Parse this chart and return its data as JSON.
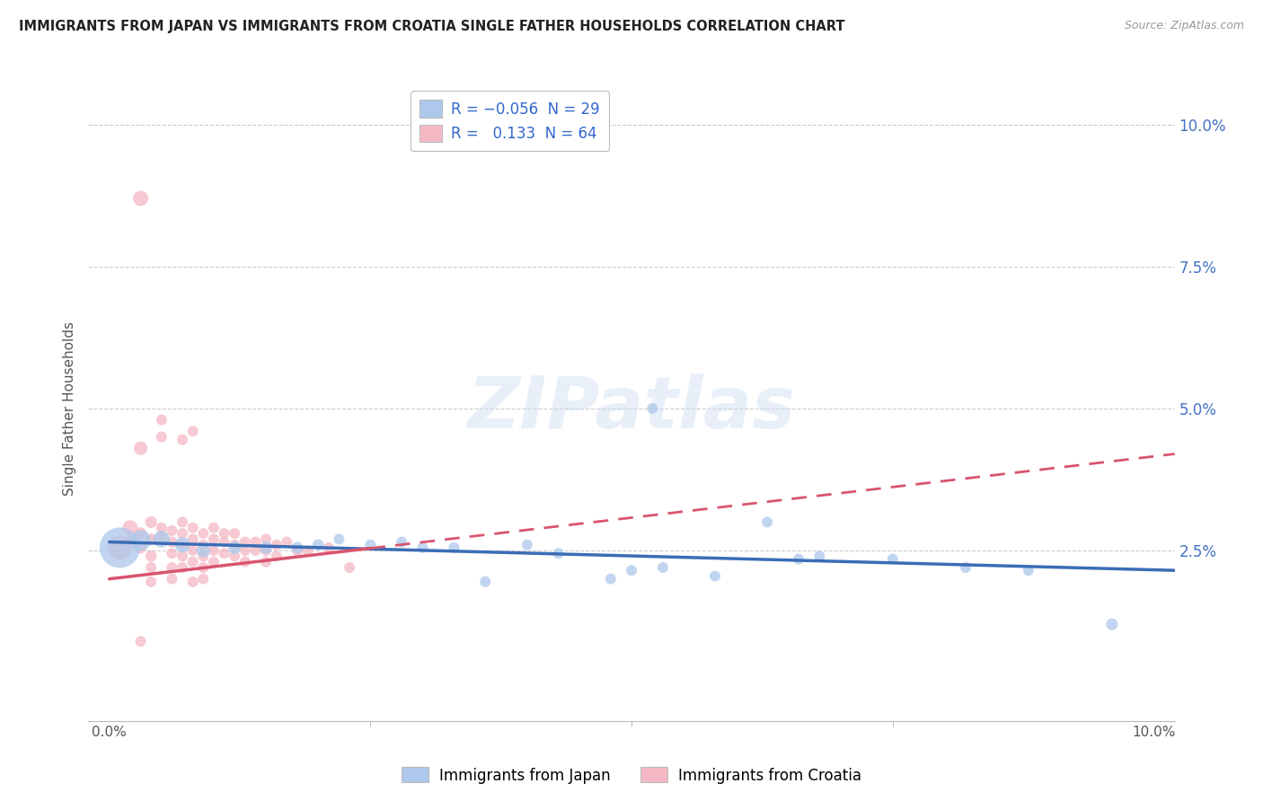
{
  "title": "IMMIGRANTS FROM JAPAN VS IMMIGRANTS FROM CROATIA SINGLE FATHER HOUSEHOLDS CORRELATION CHART",
  "source": "Source: ZipAtlas.com",
  "ylabel": "Single Father Households",
  "xlim": [
    -0.002,
    0.102
  ],
  "ylim": [
    -0.005,
    0.105
  ],
  "x_ticks": [
    0.0,
    0.1
  ],
  "x_tick_labels": [
    "0.0%",
    "10.0%"
  ],
  "y_ticks_right": [
    0.025,
    0.05,
    0.075,
    0.1
  ],
  "y_tick_labels_right": [
    "2.5%",
    "5.0%",
    "7.5%",
    "10.0%"
  ],
  "legend_entries": [
    {
      "label_r": "-0.056",
      "label_n": "29",
      "color": "#adc8eb"
    },
    {
      "label_r": "0.133",
      "label_n": "64",
      "color": "#f4b8c5"
    }
  ],
  "series_japan": {
    "name": "Immigrants from Japan",
    "color": "#adc8eb",
    "line_color": "#3b6db5",
    "points": [
      [
        0.001,
        0.0255
      ],
      [
        0.003,
        0.0268
      ],
      [
        0.005,
        0.027
      ],
      [
        0.007,
        0.026
      ],
      [
        0.009,
        0.025
      ],
      [
        0.012,
        0.0255
      ],
      [
        0.015,
        0.0255
      ],
      [
        0.018,
        0.0255
      ],
      [
        0.02,
        0.026
      ],
      [
        0.022,
        0.027
      ],
      [
        0.025,
        0.026
      ],
      [
        0.028,
        0.0265
      ],
      [
        0.03,
        0.0255
      ],
      [
        0.033,
        0.0255
      ],
      [
        0.036,
        0.0195
      ],
      [
        0.04,
        0.026
      ],
      [
        0.043,
        0.0245
      ],
      [
        0.048,
        0.02
      ],
      [
        0.05,
        0.0215
      ],
      [
        0.053,
        0.022
      ],
      [
        0.058,
        0.0205
      ],
      [
        0.052,
        0.05
      ],
      [
        0.063,
        0.03
      ],
      [
        0.066,
        0.0235
      ],
      [
        0.068,
        0.024
      ],
      [
        0.075,
        0.0235
      ],
      [
        0.082,
        0.022
      ],
      [
        0.088,
        0.0215
      ],
      [
        0.096,
        0.012
      ]
    ],
    "sizes": [
      700,
      180,
      120,
      100,
      80,
      70,
      65,
      60,
      55,
      50,
      50,
      50,
      50,
      50,
      50,
      50,
      50,
      50,
      50,
      50,
      50,
      50,
      50,
      50,
      50,
      50,
      50,
      50,
      60
    ],
    "trend_x": [
      0.0,
      0.102
    ],
    "trend_y": [
      0.0265,
      0.0215
    ]
  },
  "series_croatia": {
    "name": "Immigrants from Croatia",
    "color": "#f4b8c5",
    "line_color": "#d9546e",
    "points": [
      [
        0.001,
        0.0255
      ],
      [
        0.002,
        0.029
      ],
      [
        0.002,
        0.0265
      ],
      [
        0.003,
        0.087
      ],
      [
        0.003,
        0.043
      ],
      [
        0.003,
        0.028
      ],
      [
        0.003,
        0.0255
      ],
      [
        0.004,
        0.03
      ],
      [
        0.004,
        0.027
      ],
      [
        0.004,
        0.024
      ],
      [
        0.004,
        0.022
      ],
      [
        0.004,
        0.0195
      ],
      [
        0.005,
        0.029
      ],
      [
        0.005,
        0.0275
      ],
      [
        0.005,
        0.048
      ],
      [
        0.005,
        0.045
      ],
      [
        0.006,
        0.0285
      ],
      [
        0.006,
        0.0265
      ],
      [
        0.006,
        0.0245
      ],
      [
        0.006,
        0.022
      ],
      [
        0.006,
        0.02
      ],
      [
        0.007,
        0.0445
      ],
      [
        0.007,
        0.03
      ],
      [
        0.007,
        0.028
      ],
      [
        0.007,
        0.026
      ],
      [
        0.007,
        0.024
      ],
      [
        0.007,
        0.022
      ],
      [
        0.008,
        0.046
      ],
      [
        0.008,
        0.029
      ],
      [
        0.008,
        0.027
      ],
      [
        0.008,
        0.025
      ],
      [
        0.008,
        0.023
      ],
      [
        0.008,
        0.0195
      ],
      [
        0.009,
        0.028
      ],
      [
        0.009,
        0.026
      ],
      [
        0.009,
        0.024
      ],
      [
        0.009,
        0.022
      ],
      [
        0.009,
        0.02
      ],
      [
        0.01,
        0.029
      ],
      [
        0.01,
        0.027
      ],
      [
        0.01,
        0.025
      ],
      [
        0.01,
        0.023
      ],
      [
        0.011,
        0.028
      ],
      [
        0.011,
        0.0265
      ],
      [
        0.011,
        0.0245
      ],
      [
        0.012,
        0.028
      ],
      [
        0.012,
        0.026
      ],
      [
        0.012,
        0.024
      ],
      [
        0.013,
        0.0265
      ],
      [
        0.013,
        0.025
      ],
      [
        0.013,
        0.023
      ],
      [
        0.014,
        0.0265
      ],
      [
        0.014,
        0.025
      ],
      [
        0.015,
        0.027
      ],
      [
        0.015,
        0.025
      ],
      [
        0.015,
        0.023
      ],
      [
        0.016,
        0.026
      ],
      [
        0.016,
        0.024
      ],
      [
        0.017,
        0.0265
      ],
      [
        0.018,
        0.025
      ],
      [
        0.019,
        0.025
      ],
      [
        0.021,
        0.0255
      ],
      [
        0.023,
        0.022
      ],
      [
        0.003,
        0.009
      ]
    ],
    "sizes": [
      250,
      100,
      80,
      100,
      80,
      65,
      60,
      60,
      55,
      55,
      50,
      50,
      50,
      50,
      50,
      50,
      50,
      50,
      50,
      50,
      50,
      50,
      50,
      50,
      50,
      50,
      50,
      50,
      50,
      50,
      50,
      50,
      50,
      50,
      50,
      50,
      50,
      50,
      50,
      50,
      50,
      50,
      50,
      50,
      50,
      50,
      50,
      50,
      50,
      50,
      50,
      50,
      50,
      50,
      50,
      50,
      50,
      50,
      50,
      50,
      50,
      50,
      50,
      50
    ],
    "trend_x": [
      0.0,
      0.102
    ],
    "trend_y": [
      0.02,
      0.042
    ],
    "trend_dash_start_x": 0.025,
    "trend_dash_start_y": 0.027,
    "trend_dash_end_x": 0.102,
    "trend_dash_end_y": 0.042
  },
  "watermark": "ZIPatlas",
  "background_color": "#ffffff",
  "grid_color": "#cccccc"
}
